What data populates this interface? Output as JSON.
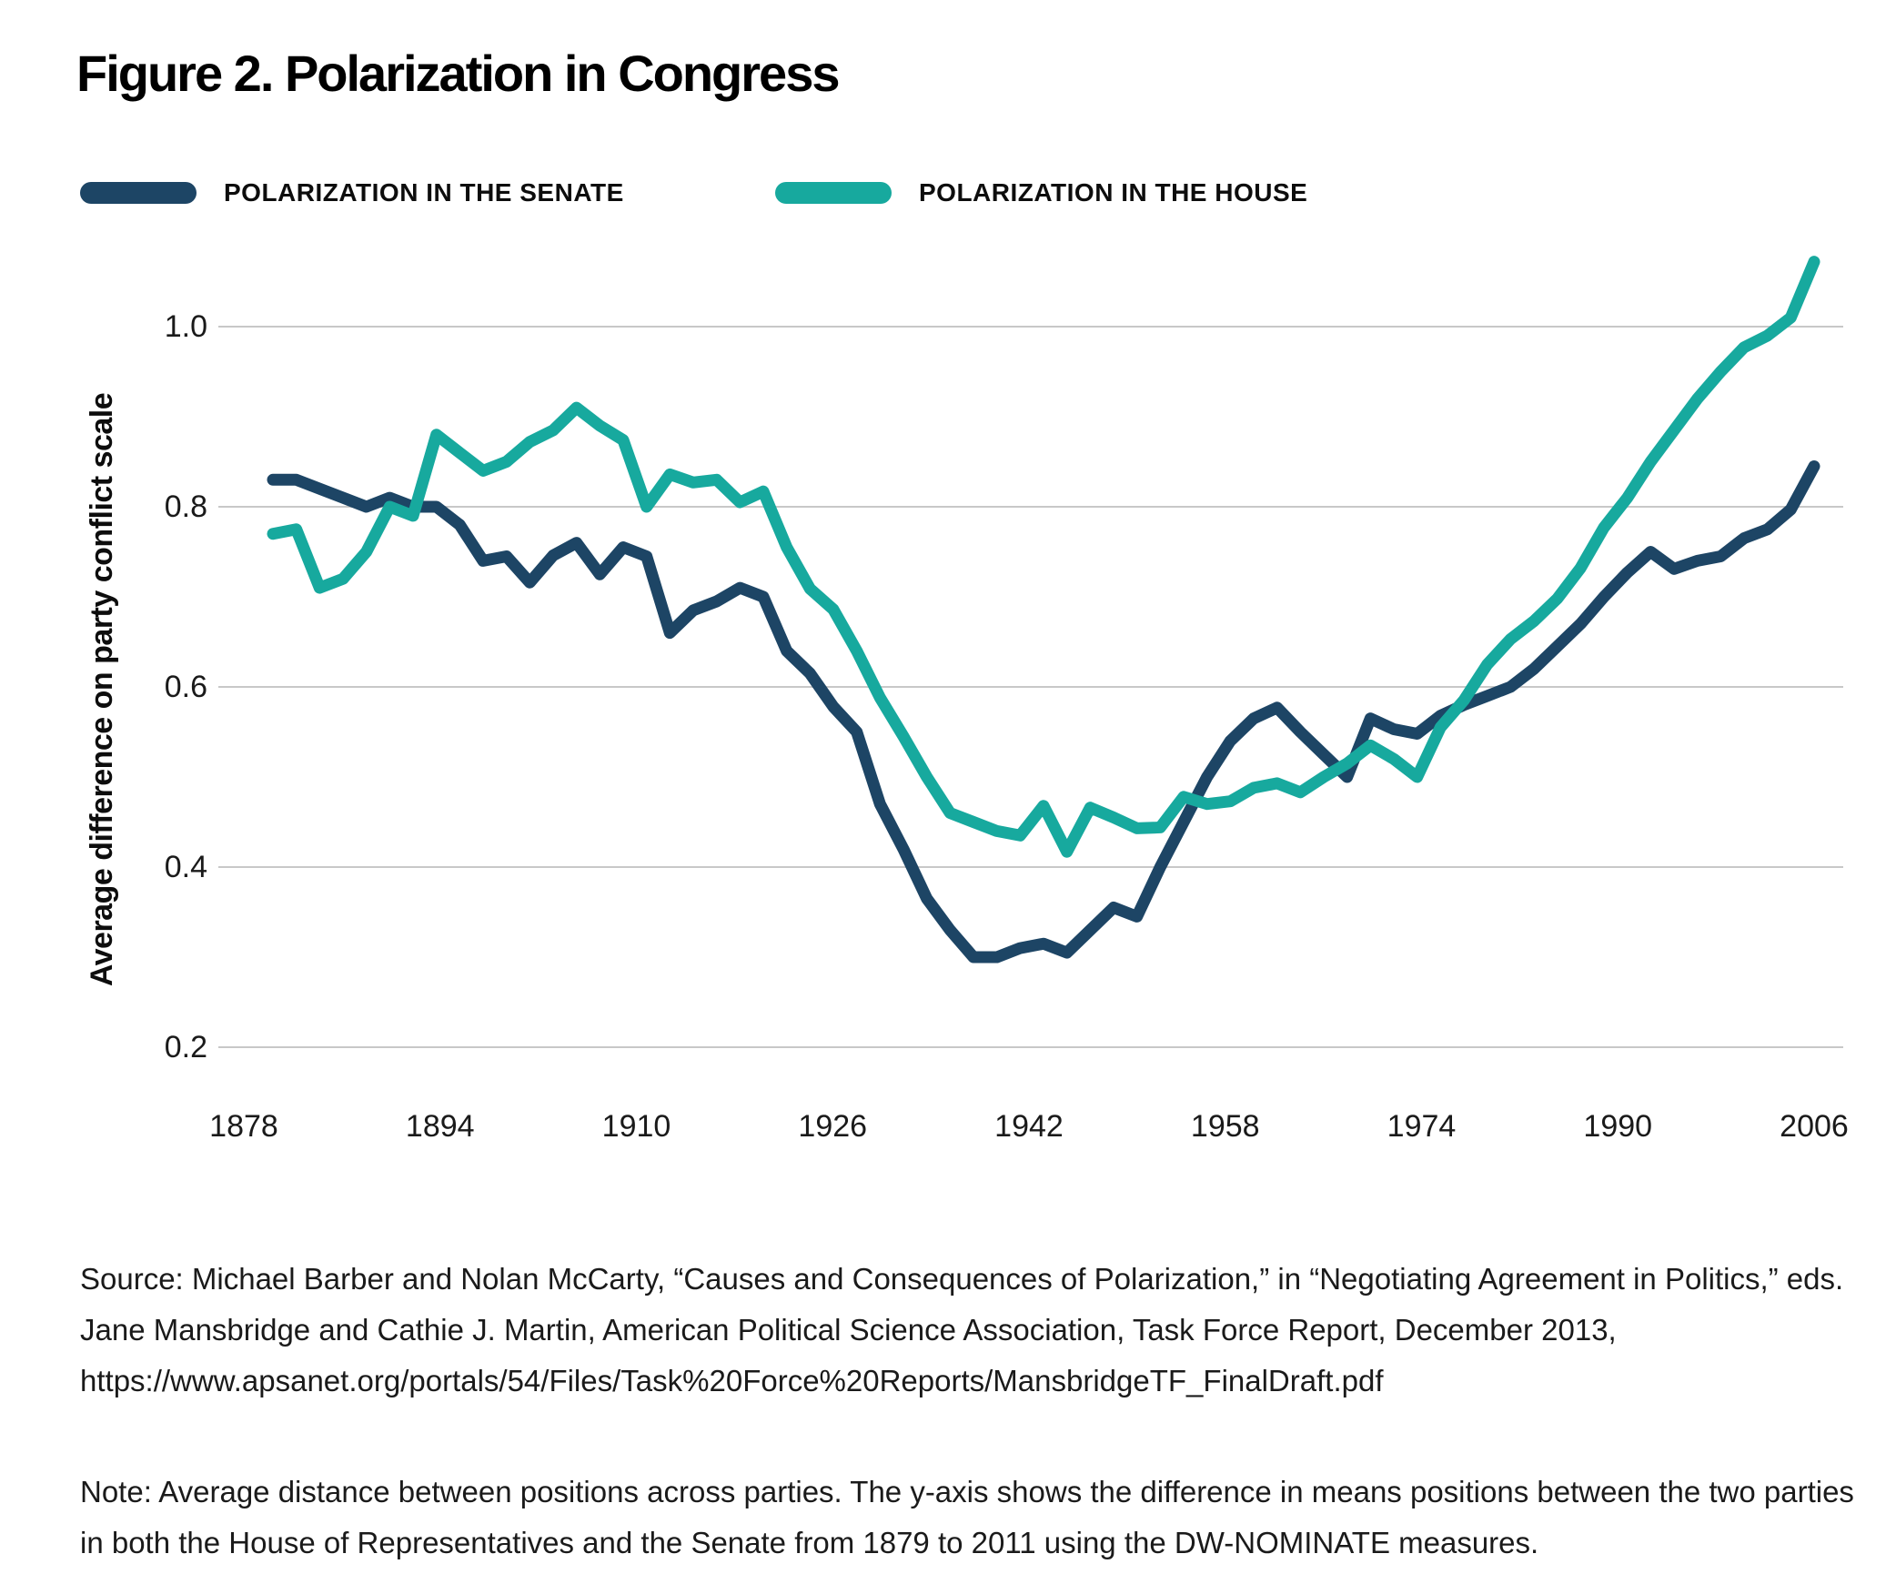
{
  "title": "Figure 2. Polarization in Congress",
  "colors": {
    "senate": "#1D4565",
    "house": "#17A99E",
    "gridline": "#C8C8C8",
    "text": "#1A1A1A"
  },
  "legend": [
    {
      "label": "POLARIZATION IN THE SENATE",
      "color": "#1D4565"
    },
    {
      "label": "POLARIZATION IN THE HOUSE",
      "color": "#17A99E"
    }
  ],
  "chart_data": {
    "type": "line",
    "title": "Figure 2. Polarization in Congress",
    "xlabel": "",
    "ylabel": "Average difference on party conflict scale",
    "ylim": [
      0.13,
      1.12
    ],
    "yticks": [
      1.0,
      0.8,
      0.6,
      0.4,
      0.2
    ],
    "ytick_labels": [
      "1.0",
      "0.8",
      "0.6",
      "0.4",
      "0.2"
    ],
    "xticks": [
      "1878",
      "1894",
      "1910",
      "1926",
      "1942",
      "1958",
      "1974",
      "1990",
      "2006"
    ],
    "grid": true,
    "legend_position": "top",
    "x": [
      1879,
      1881,
      1883,
      1885,
      1887,
      1889,
      1891,
      1893,
      1895,
      1897,
      1899,
      1901,
      1903,
      1905,
      1907,
      1909,
      1911,
      1913,
      1915,
      1917,
      1919,
      1921,
      1923,
      1925,
      1927,
      1929,
      1931,
      1933,
      1935,
      1937,
      1939,
      1941,
      1943,
      1945,
      1947,
      1949,
      1951,
      1953,
      1955,
      1957,
      1959,
      1961,
      1963,
      1965,
      1967,
      1969,
      1971,
      1973,
      1975,
      1977,
      1979,
      1981,
      1983,
      1985,
      1987,
      1989,
      1991,
      1993,
      1995,
      1997,
      1999,
      2001,
      2003,
      2005,
      2007,
      2009,
      2011
    ],
    "series": [
      {
        "name": "POLARIZATION IN THE SENATE",
        "color": "#1D4565",
        "values": [
          0.83,
          0.83,
          0.82,
          0.81,
          0.8,
          0.81,
          0.8,
          0.8,
          0.78,
          0.74,
          0.745,
          0.716,
          0.746,
          0.76,
          0.725,
          0.755,
          0.745,
          0.66,
          0.685,
          0.695,
          0.71,
          0.7,
          0.64,
          0.615,
          0.578,
          0.55,
          0.47,
          0.42,
          0.365,
          0.33,
          0.3,
          0.3,
          0.31,
          0.315,
          0.305,
          0.33,
          0.355,
          0.345,
          0.4,
          0.45,
          0.5,
          0.54,
          0.565,
          0.577,
          0.55,
          0.525,
          0.5,
          0.565,
          0.553,
          0.548,
          0.568,
          0.58,
          0.59,
          0.6,
          0.62,
          0.645,
          0.67,
          0.7,
          0.727,
          0.75,
          0.731,
          0.74,
          0.745,
          0.765,
          0.775,
          0.797,
          0.845
        ]
      },
      {
        "name": "POLARIZATION IN THE HOUSE",
        "color": "#17A99E",
        "values": [
          0.77,
          0.775,
          0.71,
          0.72,
          0.75,
          0.8,
          0.79,
          0.88,
          0.86,
          0.84,
          0.85,
          0.872,
          0.885,
          0.91,
          0.89,
          0.874,
          0.8,
          0.836,
          0.827,
          0.83,
          0.805,
          0.817,
          0.755,
          0.709,
          0.686,
          0.64,
          0.588,
          0.545,
          0.5,
          0.46,
          0.45,
          0.44,
          0.435,
          0.468,
          0.417,
          0.466,
          0.455,
          0.443,
          0.444,
          0.478,
          0.47,
          0.473,
          0.488,
          0.493,
          0.483,
          0.5,
          0.515,
          0.535,
          0.52,
          0.5,
          0.555,
          0.585,
          0.625,
          0.653,
          0.673,
          0.698,
          0.732,
          0.777,
          0.81,
          0.85,
          0.885,
          0.92,
          0.95,
          0.977,
          0.99,
          1.01,
          1.072
        ]
      }
    ]
  },
  "source": "Source: Michael Barber and Nolan McCarty, “Causes and Consequences of Polarization,” in “Negotiating Agreement in Politics,” eds. Jane Mansbridge and Cathie J. Martin, American Political Science Association, Task Force Report, December 2013, https://www.apsanet.org/portals/54/Files/Task%20Force%20Reports/MansbridgeTF_FinalDraft.pdf",
  "note": "Note: Average distance between positions across parties. The y-axis shows the difference in means positions between the two parties in both the House of Representatives and the Senate from 1879 to 2011 using the DW-NOMINATE measures."
}
